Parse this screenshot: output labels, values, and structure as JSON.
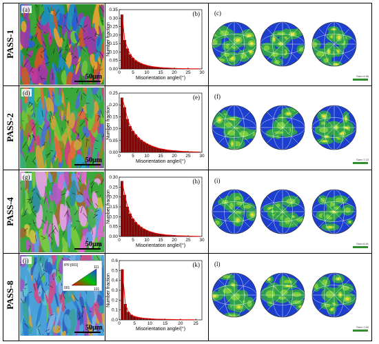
{
  "rows": [
    {
      "label": "PASS-1",
      "map": {
        "letter": "(a)",
        "scale_label": "50μm",
        "palette": [
          "#2a8f2a",
          "#3aa83a",
          "#8b3fa8",
          "#c2369b",
          "#1f8fb8",
          "#6ec43a",
          "#2b5fd0",
          "#c95a2a",
          "#e0a030",
          "#a03aa0"
        ]
      },
      "histogram": {
        "letter": "(b)"
      },
      "pole_figure": {
        "letter": "(c)",
        "size_label": "Size=4.86"
      }
    },
    {
      "label": "PASS-2",
      "map": {
        "letter": "(d)",
        "scale_label": "50μm",
        "palette": [
          "#3aa83a",
          "#6ec43a",
          "#9b4fc0",
          "#d0407f",
          "#2aa3c0",
          "#c9a23a",
          "#38b070",
          "#8a8a2a",
          "#e06a3a",
          "#4a6fd0"
        ]
      },
      "histogram": {
        "letter": "(e)"
      },
      "pole_figure": {
        "letter": "(f)",
        "size_label": "Size=7.13"
      }
    },
    {
      "label": "PASS-4",
      "map": {
        "letter": "(g)",
        "scale_label": "50μm",
        "palette": [
          "#3aa83a",
          "#78c840",
          "#b05ac0",
          "#d86ad0",
          "#4ab050",
          "#c8c040",
          "#2f8fa0",
          "#9a6a30",
          "#e0a0e0",
          "#5aa0e0"
        ]
      },
      "histogram": {
        "letter": "(h)"
      },
      "pole_figure": {
        "letter": "(i)",
        "size_label": "Size=6.61"
      }
    },
    {
      "label": "PASS-8",
      "map": {
        "letter": "(j)",
        "scale_label": "50μm",
        "palette": [
          "#4aa0d8",
          "#7ab0e0",
          "#5ac05a",
          "#2a7fd0",
          "#9a5ac8",
          "#c8508a",
          "#3aa0a0",
          "#d0a040",
          "#60c0d0",
          "#3060c0"
        ]
      },
      "histogram": {
        "letter": "(k)"
      },
      "pole_figure": {
        "letter": "(l)",
        "size_label": "Size=7.80"
      }
    }
  ],
  "ipf_legend": {
    "title": "IPF:[001]",
    "corners": [
      "001",
      "101",
      "111"
    ]
  },
  "colors": {
    "bar_fill": "#8b0000",
    "bar_stroke": "#2a0000",
    "curve": "#ff0000",
    "pole_background": "#1c3fd0",
    "pole_contour_mid": "#2fa34a",
    "pole_contour_high": "#e8e03a",
    "scale_bar": "#2f8f2f"
  },
  "chart_data": [
    {
      "type": "bar",
      "panel": "(b)",
      "xlabel": "Misorientation angle/(°)",
      "ylabel": "Number fraction",
      "xlim": [
        0,
        30
      ],
      "ylim": [
        0,
        0.35
      ],
      "xticks": [
        "0",
        "5",
        "10",
        "15",
        "20",
        "25",
        "30"
      ],
      "yticks": [
        "0.00",
        "0.05",
        "0.10",
        "0.15",
        "0.20",
        "0.25",
        "0.30",
        "0.35"
      ],
      "x": [
        1,
        2,
        3,
        4,
        5,
        6,
        7,
        8,
        9,
        10,
        11,
        12,
        13,
        14,
        15,
        16,
        17,
        18,
        19,
        20,
        21,
        22,
        23,
        24,
        25,
        26,
        27,
        28,
        29
      ],
      "values": [
        0.32,
        0.17,
        0.12,
        0.085,
        0.065,
        0.05,
        0.04,
        0.032,
        0.026,
        0.021,
        0.017,
        0.014,
        0.012,
        0.01,
        0.008,
        0.007,
        0.006,
        0.005,
        0.004,
        0.0035,
        0.003,
        0.0025,
        0.002,
        0.0018,
        0.0015,
        0.0012,
        0.001,
        0.001,
        0.0008
      ]
    },
    {
      "type": "bar",
      "panel": "(e)",
      "xlabel": "Misorientation angle/(°)",
      "ylabel": "Number fraction",
      "xlim": [
        0,
        30
      ],
      "ylim": [
        0,
        0.25
      ],
      "xticks": [
        "0",
        "5",
        "10",
        "15",
        "20",
        "25",
        "30"
      ],
      "yticks": [
        "0.00",
        "0.05",
        "0.10",
        "0.15",
        "0.20",
        "0.25"
      ],
      "x": [
        1,
        2,
        3,
        4,
        5,
        6,
        7,
        8,
        9,
        10,
        11,
        12,
        13,
        14,
        15,
        16,
        17,
        18,
        19,
        20,
        21,
        22,
        23,
        24,
        25,
        26,
        27,
        28,
        29
      ],
      "values": [
        0.23,
        0.19,
        0.14,
        0.11,
        0.09,
        0.075,
        0.062,
        0.052,
        0.044,
        0.037,
        0.031,
        0.026,
        0.022,
        0.018,
        0.015,
        0.013,
        0.011,
        0.009,
        0.008,
        0.007,
        0.006,
        0.005,
        0.004,
        0.0035,
        0.003,
        0.0025,
        0.002,
        0.0018,
        0.0015
      ]
    },
    {
      "type": "bar",
      "panel": "(h)",
      "xlabel": "Misorientation angle/(°)",
      "ylabel": "Number fraction",
      "xlim": [
        0,
        30
      ],
      "ylim": [
        0,
        0.3
      ],
      "xticks": [
        "0",
        "5",
        "10",
        "15",
        "20",
        "25",
        "30"
      ],
      "yticks": [
        "0.00",
        "0.05",
        "0.10",
        "0.15",
        "0.20",
        "0.25",
        "0.30"
      ],
      "x": [
        1,
        2,
        3,
        4,
        5,
        6,
        7,
        8,
        9,
        10,
        11,
        12,
        13,
        14,
        15,
        16,
        17,
        18,
        19,
        20,
        21,
        22,
        23,
        24,
        25,
        26,
        27,
        28,
        29
      ],
      "values": [
        0.28,
        0.21,
        0.15,
        0.115,
        0.09,
        0.072,
        0.058,
        0.047,
        0.038,
        0.031,
        0.025,
        0.021,
        0.017,
        0.014,
        0.012,
        0.01,
        0.008,
        0.007,
        0.006,
        0.005,
        0.004,
        0.0035,
        0.003,
        0.0025,
        0.002,
        0.0018,
        0.0015,
        0.0012,
        0.001
      ]
    },
    {
      "type": "bar",
      "panel": "(k)",
      "xlabel": "Misorientation angle/(°)",
      "ylabel": "Number fraction",
      "xlim": [
        0,
        27
      ],
      "ylim": [
        0,
        0.6
      ],
      "xticks": [
        "0",
        "5",
        "10",
        "15",
        "20",
        "25"
      ],
      "yticks": [
        "0.0",
        "0.1",
        "0.2",
        "0.3",
        "0.4",
        "0.5",
        "0.6"
      ],
      "x": [
        1,
        2,
        3,
        4,
        5,
        6,
        7,
        8,
        9,
        10,
        11,
        12,
        13,
        14,
        15,
        16,
        17,
        18,
        19,
        20,
        21,
        22,
        23,
        24,
        25
      ],
      "values": [
        0.51,
        0.16,
        0.08,
        0.05,
        0.035,
        0.027,
        0.021,
        0.017,
        0.014,
        0.012,
        0.01,
        0.008,
        0.007,
        0.006,
        0.005,
        0.0045,
        0.004,
        0.0035,
        0.003,
        0.0025,
        0.002,
        0.002,
        0.0015,
        0.0015,
        0.001
      ]
    }
  ]
}
